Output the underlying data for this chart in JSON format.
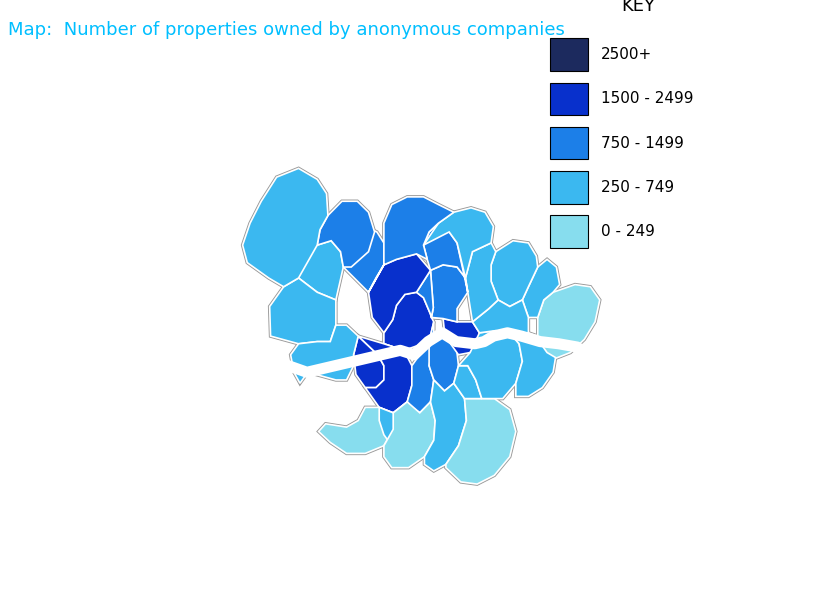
{
  "title": "Map:  Number of properties owned by anonymous companies",
  "title_color": "#00BFFF",
  "title_fontsize": 13,
  "key_title": "KEY",
  "legend_items": [
    {
      "label": "0 - 249",
      "color": "#87DDEE"
    },
    {
      "label": "250 - 749",
      "color": "#3BB8F0"
    },
    {
      "label": "750 - 1499",
      "color": "#1C7FE8"
    },
    {
      "label": "1500 - 2499",
      "color": "#0830CC"
    },
    {
      "label": "2500+",
      "color": "#1C2A5E"
    }
  ],
  "river_color": "#FFFFFF",
  "border_color": "#FFFFFF",
  "outer_border_color": "#AAAAAA",
  "boroughs": {
    "City of London": {
      "color": "#1C2A5E"
    },
    "Westminster": {
      "color": "#0830CC"
    },
    "Kensington and Chelsea": {
      "color": "#0830CC"
    },
    "Hammersmith and Fulham": {
      "color": "#0830CC"
    },
    "Wandsworth": {
      "color": "#0830CC"
    },
    "Lambeth": {
      "color": "#1C7FE8"
    },
    "Southwark": {
      "color": "#1C7FE8"
    },
    "Tower Hamlets": {
      "color": "#0830CC"
    },
    "Hackney": {
      "color": "#1C7FE8"
    },
    "Islington": {
      "color": "#1C7FE8"
    },
    "Camden": {
      "color": "#0830CC"
    },
    "Brent": {
      "color": "#1C7FE8"
    },
    "Ealing": {
      "color": "#3BB8F0"
    },
    "Hounslow": {
      "color": "#3BB8F0"
    },
    "Richmond upon Thames": {
      "color": "#3BB8F0"
    },
    "Kingston upon Thames": {
      "color": "#87DDEE"
    },
    "Merton": {
      "color": "#3BB8F0"
    },
    "Sutton": {
      "color": "#87DDEE"
    },
    "Croydon": {
      "color": "#3BB8F0"
    },
    "Bromley": {
      "color": "#87DDEE"
    },
    "Lewisham": {
      "color": "#3BB8F0"
    },
    "Greenwich": {
      "color": "#3BB8F0"
    },
    "Bexley": {
      "color": "#3BB8F0"
    },
    "Havering": {
      "color": "#87DDEE"
    },
    "Barking and Dagenham": {
      "color": "#3BB8F0"
    },
    "Redbridge": {
      "color": "#3BB8F0"
    },
    "Newham": {
      "color": "#3BB8F0"
    },
    "Waltham Forest": {
      "color": "#3BB8F0"
    },
    "Haringey": {
      "color": "#1C7FE8"
    },
    "Enfield": {
      "color": "#3BB8F0"
    },
    "Barnet": {
      "color": "#1C7FE8"
    },
    "Harrow": {
      "color": "#1C7FE8"
    },
    "Hillingdon": {
      "color": "#3BB8F0"
    }
  }
}
